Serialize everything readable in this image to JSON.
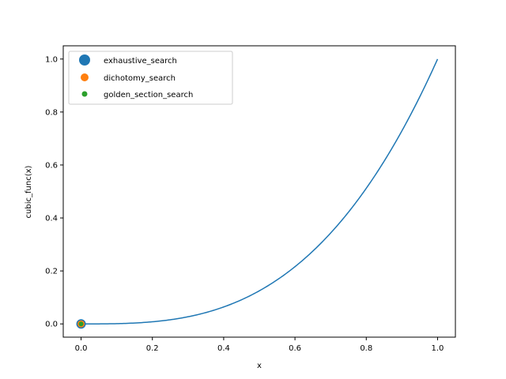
{
  "chart_data": {
    "type": "line",
    "title": "",
    "xlabel": "x",
    "ylabel": "cubic_func(x)",
    "xlim": [
      -0.05,
      1.05
    ],
    "ylim": [
      -0.05,
      1.05
    ],
    "xticks": [
      0.0,
      0.2,
      0.4,
      0.6,
      0.8,
      1.0
    ],
    "yticks": [
      0.0,
      0.2,
      0.4,
      0.6,
      0.8,
      1.0
    ],
    "xtick_labels": [
      "0.0",
      "0.2",
      "0.4",
      "0.6",
      "0.8",
      "1.0"
    ],
    "ytick_labels": [
      "0.0",
      "0.2",
      "0.4",
      "0.6",
      "0.8",
      "1.0"
    ],
    "grid": false,
    "legend_position": "top-left",
    "curve": {
      "function": "x^3",
      "x": [
        0.0,
        0.05,
        0.1,
        0.15,
        0.2,
        0.25,
        0.3,
        0.35,
        0.4,
        0.45,
        0.5,
        0.55,
        0.6,
        0.65,
        0.7,
        0.75,
        0.8,
        0.85,
        0.9,
        0.95,
        1.0
      ],
      "y": [
        0.0,
        0.000125,
        0.001,
        0.003375,
        0.008,
        0.015625,
        0.027,
        0.042875,
        0.064,
        0.091125,
        0.125,
        0.166375,
        0.216,
        0.274625,
        0.343,
        0.421875,
        0.512,
        0.614125,
        0.729,
        0.857375,
        1.0
      ],
      "color": "#1f77b4"
    },
    "series": [
      {
        "name": "exhaustive_search",
        "x": 0.0,
        "y": 0.0,
        "color": "#1f77b4",
        "marker_size": "large"
      },
      {
        "name": "dichotomy_search",
        "x": 0.0,
        "y": 0.0,
        "color": "#ff7f0e",
        "marker_size": "medium"
      },
      {
        "name": "golden_section_search",
        "x": 0.0,
        "y": 0.0,
        "color": "#2ca02c",
        "marker_size": "small"
      }
    ]
  }
}
